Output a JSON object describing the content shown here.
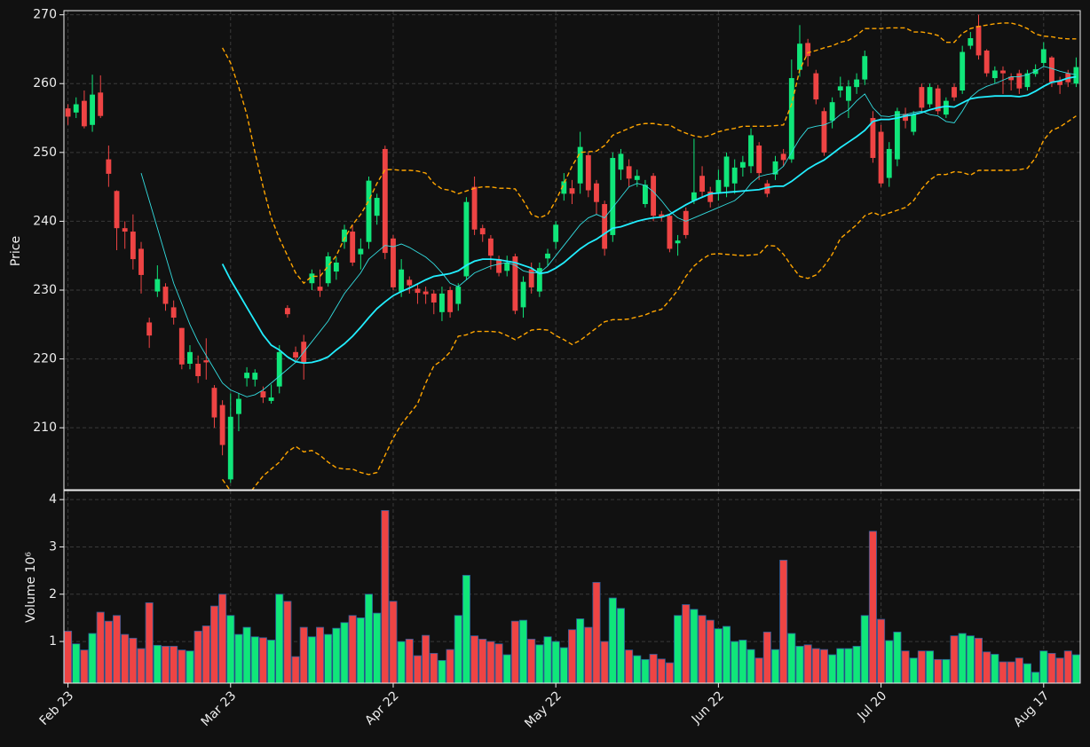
{
  "chart_data": {
    "type": "candlestick",
    "ylabel": "Price",
    "volume_ylabel": "Volume  10⁶",
    "up_color": "#10e67a",
    "down_color": "#ee4444",
    "volume_edge": "#2a5d9a",
    "grid": true,
    "ylim": [
      201,
      270.6
    ],
    "yticks": [
      210,
      220,
      230,
      240,
      250,
      260,
      270
    ],
    "volume_ylim": [
      0.12,
      4.19
    ],
    "volume_yticks": [
      1,
      2,
      3,
      4
    ],
    "categories": [
      "Feb 23",
      null,
      null,
      null,
      null,
      null,
      null,
      null,
      null,
      null,
      null,
      null,
      null,
      null,
      null,
      null,
      null,
      null,
      null,
      null,
      "Mar 23",
      null,
      null,
      null,
      null,
      null,
      null,
      null,
      null,
      null,
      null,
      null,
      null,
      null,
      null,
      null,
      null,
      null,
      null,
      null,
      "Apr 22",
      null,
      null,
      null,
      null,
      null,
      null,
      null,
      null,
      null,
      null,
      null,
      null,
      null,
      null,
      null,
      null,
      null,
      null,
      null,
      "May 22",
      null,
      null,
      null,
      null,
      null,
      null,
      null,
      null,
      null,
      null,
      null,
      null,
      null,
      null,
      null,
      null,
      null,
      null,
      null,
      "Jun 22",
      null,
      null,
      null,
      null,
      null,
      null,
      null,
      null,
      null,
      null,
      null,
      null,
      null,
      null,
      null,
      null,
      null,
      null,
      null,
      "Jul 20",
      null,
      null,
      null,
      null,
      null,
      null,
      null,
      null,
      null,
      null,
      null,
      null,
      null,
      null,
      null,
      null,
      null,
      null,
      null,
      "Aug 17",
      null,
      null,
      null,
      null
    ],
    "open": [
      256.4,
      255.8,
      257.5,
      254,
      258.7,
      249,
      244.4,
      239,
      238.5,
      236,
      225.3,
      229.8,
      230.5,
      227.5,
      224.5,
      219.3,
      219.3,
      219.8,
      215.8,
      213.3,
      202.5,
      212,
      217.2,
      217,
      215.3,
      213.9,
      216,
      227.4,
      221,
      222.5,
      231,
      230.5,
      231,
      232.7,
      237,
      238.5,
      235.2,
      237,
      240.8,
      250.5,
      237.5,
      229.8,
      231.5,
      230.2,
      229.8,
      229.5,
      226.8,
      230,
      228,
      232,
      245,
      239,
      237.5,
      234.5,
      232.8,
      234.9,
      227.5,
      233,
      229.8,
      234.6,
      237,
      244,
      244.8,
      245.5,
      249.6,
      245.5,
      242.5,
      238,
      247.5,
      248,
      246,
      242.5,
      246.6,
      241,
      240.8,
      236.8,
      241.5,
      243,
      246.6,
      244.3,
      244.2,
      245,
      245.5,
      247.8,
      248,
      251,
      245.5,
      246.8,
      249.8,
      249,
      262,
      265.9,
      261.5,
      256,
      254.6,
      259,
      257.5,
      259.5,
      260.6,
      255,
      253,
      246.3,
      249,
      255.6,
      253,
      259.5,
      257,
      259.3,
      255.5,
      259.5,
      259,
      265.5,
      268.4,
      264.8,
      260.8,
      261.9,
      261,
      261.5,
      259.5,
      261.4,
      263,
      263.8,
      260.4,
      261.5,
      260
    ],
    "high": [
      257,
      258,
      259,
      261.3,
      261.2,
      251,
      244.5,
      240,
      241,
      237,
      226,
      233.6,
      231,
      228.5,
      224.5,
      222,
      220.5,
      223,
      216.2,
      214,
      215,
      215,
      218.8,
      218.5,
      216,
      216.3,
      222,
      227.8,
      221.8,
      223.5,
      233,
      233,
      235.5,
      234.8,
      239.5,
      239.5,
      237.5,
      246.5,
      244,
      251,
      238,
      234.5,
      232,
      231,
      230.5,
      230,
      230.5,
      230.5,
      231,
      243.5,
      246.5,
      239.5,
      238,
      235,
      235,
      235.3,
      232,
      234,
      234,
      236,
      240,
      247,
      246,
      253,
      250,
      246,
      243,
      250,
      250.5,
      249,
      247.5,
      246,
      247,
      241.5,
      241,
      238,
      242,
      252,
      248,
      245,
      247.5,
      250,
      249,
      249.5,
      253.5,
      251.5,
      246,
      249.5,
      250.5,
      263.5,
      268.5,
      266.5,
      262,
      256.5,
      258,
      261,
      260.5,
      261.5,
      264.8,
      256,
      254,
      251.5,
      256.5,
      256.5,
      256,
      260,
      260,
      259.8,
      258,
      260,
      265.5,
      267.5,
      270,
      265,
      262.5,
      262.5,
      261.5,
      262,
      262,
      262.8,
      266,
      264,
      261,
      262,
      263.8
    ],
    "low": [
      254,
      255,
      253.5,
      253,
      255,
      245,
      235.8,
      236,
      233,
      229.5,
      221.6,
      229,
      227,
      225,
      218.5,
      218.5,
      216.5,
      217,
      210,
      206,
      202,
      209.5,
      216,
      216,
      213.6,
      213.5,
      215,
      226,
      219.6,
      217,
      230,
      229,
      230.5,
      231.5,
      236,
      233.5,
      233,
      236,
      239.5,
      234.5,
      230,
      229,
      229.5,
      228,
      228,
      226.5,
      225.5,
      226,
      227,
      231.5,
      238,
      237,
      233,
      232,
      232,
      226.5,
      226,
      229.5,
      229,
      233.5,
      236,
      243,
      242.5,
      244,
      243.5,
      241,
      235,
      237,
      246,
      245,
      245,
      242,
      240,
      240,
      235.5,
      235,
      237.5,
      242.5,
      243.5,
      242,
      243,
      243.5,
      244,
      246.5,
      247,
      246,
      243.5,
      246,
      248,
      248.5,
      261,
      262.5,
      257,
      249.5,
      253.5,
      258,
      255,
      258.5,
      259.8,
      248.5,
      245,
      245,
      248,
      253.5,
      252.5,
      256,
      256.5,
      255.5,
      255,
      257.5,
      258.5,
      265,
      263.5,
      261,
      260,
      258.5,
      259,
      258.5,
      259,
      261,
      262.5,
      259.5,
      258.5,
      259.5,
      259.5
    ],
    "close": [
      255.2,
      257,
      253.8,
      258.4,
      255.3,
      246.9,
      239,
      238.5,
      234.5,
      232.2,
      223.4,
      231.6,
      228,
      226,
      219.2,
      221,
      217.5,
      219.5,
      211.5,
      207.5,
      211.6,
      214.2,
      218,
      218,
      214.4,
      214.4,
      221,
      226.5,
      220.2,
      219.5,
      232.4,
      229.9,
      234.9,
      234,
      238.8,
      234,
      236,
      245.9,
      243.4,
      235.4,
      230.4,
      233,
      230.7,
      229.6,
      229.4,
      228.2,
      229.5,
      226.8,
      230.5,
      242.8,
      238.8,
      238.1,
      235,
      232.5,
      234,
      227,
      231.2,
      230.4,
      233.2,
      235.3,
      239.5,
      245.8,
      244,
      250.8,
      244.5,
      242.8,
      236,
      249.2,
      249.8,
      246.2,
      246.6,
      245.3,
      240.8,
      240.6,
      236,
      237.2,
      238,
      244.2,
      244.3,
      242.8,
      246,
      249.4,
      247.8,
      248.6,
      252.5,
      247,
      244,
      248.7,
      248.9,
      260.8,
      265.8,
      264,
      257.7,
      250,
      257.3,
      259.6,
      259.6,
      260.6,
      264,
      249.2,
      245.5,
      250.5,
      256,
      254.6,
      255.5,
      256.5,
      259.5,
      256,
      257.5,
      258,
      264.6,
      266.6,
      264.1,
      261.5,
      261.9,
      261.5,
      260.5,
      259.3,
      261.5,
      262.1,
      265,
      260.2,
      259.8,
      260.2,
      262.4
    ],
    "volume": [
      1.22,
      0.95,
      0.82,
      1.17,
      1.62,
      1.43,
      1.55,
      1.15,
      1.07,
      0.85,
      1.82,
      0.92,
      0.9,
      0.9,
      0.82,
      0.8,
      1.22,
      1.33,
      1.75,
      2.0,
      1.55,
      1.15,
      1.3,
      1.1,
      1.08,
      1.03,
      2.0,
      1.85,
      0.68,
      1.3,
      1.1,
      1.3,
      1.15,
      1.28,
      1.4,
      1.55,
      1.5,
      2.0,
      1.6,
      3.77,
      1.85,
      1.0,
      1.05,
      0.7,
      1.13,
      0.75,
      0.6,
      0.83,
      1.55,
      2.4,
      1.12,
      1.05,
      1.0,
      0.95,
      0.72,
      1.43,
      1.45,
      1.05,
      0.93,
      1.1,
      1.0,
      0.87,
      1.25,
      1.48,
      1.3,
      2.25,
      1.0,
      1.92,
      1.7,
      0.82,
      0.7,
      0.62,
      0.73,
      0.63,
      0.55,
      1.55,
      1.78,
      1.68,
      1.55,
      1.45,
      1.27,
      1.32,
      1.0,
      1.03,
      0.83,
      0.65,
      1.2,
      0.83,
      2.72,
      1.17,
      0.9,
      0.93,
      0.85,
      0.83,
      0.72,
      0.85,
      0.85,
      0.9,
      1.55,
      3.33,
      1.47,
      1.02,
      1.2,
      0.8,
      0.65,
      0.8,
      0.8,
      0.62,
      0.62,
      1.12,
      1.17,
      1.12,
      1.07,
      0.78,
      0.73,
      0.57,
      0.57,
      0.65,
      0.53,
      0.35,
      0.8,
      0.75,
      0.65,
      0.8,
      0.72
    ],
    "lines": [
      {
        "color": "#33dde0",
        "dashed": false,
        "values": [
          null,
          null,
          null,
          null,
          null,
          null,
          null,
          null,
          null,
          247,
          243,
          239,
          235,
          231,
          228,
          225,
          222.5,
          220.5,
          218.5,
          216.5,
          215.5,
          215,
          214.5,
          214.8,
          215.5,
          216.5,
          217.5,
          218.5,
          219.5,
          221,
          222.5,
          224,
          225.5,
          227.5,
          229.5,
          231,
          232.5,
          234.5,
          235.5,
          236.5,
          236.3,
          236.7,
          236.2,
          235.5,
          234.8,
          233.8,
          232.5,
          231,
          230.5,
          231.5,
          232.5,
          233,
          233.5,
          233.8,
          234,
          233.6,
          232.8,
          232.5,
          232.5,
          233.5,
          235,
          236.5,
          238,
          239.5,
          240.5,
          241,
          240.5,
          242,
          243.5,
          245,
          245.5,
          245.2,
          244.3,
          243,
          241.5,
          240.5,
          240,
          240.5,
          241,
          241.5,
          242,
          242.5,
          243,
          244,
          245.5,
          246.5,
          246.8,
          247,
          248,
          250,
          252,
          253.5,
          253.8,
          254,
          254.5,
          255.5,
          256.2,
          257.5,
          258.5,
          256.5,
          255.3,
          255.2,
          255.5,
          255.5,
          255.8,
          256,
          255.5,
          255.3,
          254.5,
          254.3,
          256,
          258,
          259,
          259.6,
          260,
          260.5,
          261,
          261,
          261.3,
          261.8,
          262.5,
          262.2,
          261.8,
          261.5,
          261.3
        ]
      },
      {
        "color": "#22eeff",
        "dashed": false,
        "values": [
          null,
          null,
          null,
          null,
          null,
          null,
          null,
          null,
          null,
          null,
          null,
          null,
          null,
          null,
          null,
          null,
          null,
          null,
          null,
          233.8,
          231.5,
          229.5,
          227.5,
          225.5,
          223.5,
          222,
          221.3,
          220.3,
          219.6,
          219.4,
          219.5,
          219.8,
          220.3,
          221.3,
          222.2,
          223.3,
          224.6,
          226,
          227.3,
          228.3,
          229.2,
          229.8,
          230.3,
          230.9,
          231.5,
          232,
          232.2,
          232.4,
          232.8,
          233.6,
          234.2,
          234.5,
          234.5,
          234.4,
          234.2,
          234,
          233.6,
          233.2,
          232.4,
          232.6,
          233.2,
          234,
          235,
          236,
          236.8,
          237.4,
          238.2,
          239,
          239.2,
          239.6,
          240,
          240.3,
          240.5,
          240.6,
          241,
          241.7,
          242.4,
          243,
          243.5,
          244,
          244.1,
          244.2,
          244.3,
          244.4,
          244.5,
          244.6,
          244.9,
          245.1,
          245.1,
          245.8,
          246.7,
          247.6,
          248.3,
          248.9,
          249.8,
          250.7,
          251.5,
          252.3,
          253.2,
          254.5,
          254.8,
          254.8,
          255,
          255.3,
          255.5,
          255.8,
          256.2,
          256.5,
          256.7,
          256.6,
          257.2,
          257.8,
          258,
          258.1,
          258.2,
          258.2,
          258.2,
          258.1,
          258.3,
          258.9,
          259.6,
          260.2,
          260.4,
          260.8,
          261
        ]
      },
      {
        "color": "#ffa500",
        "dashed": true,
        "values": [
          null,
          null,
          null,
          null,
          null,
          null,
          null,
          null,
          null,
          null,
          null,
          null,
          null,
          null,
          null,
          null,
          null,
          null,
          null,
          265.2,
          263,
          259.5,
          255.5,
          250,
          245,
          240.5,
          237.5,
          235,
          232.5,
          231,
          232,
          232,
          233.5,
          235,
          237.5,
          239.5,
          241,
          243,
          245.5,
          247.5,
          247.5,
          247.4,
          247.4,
          247.3,
          247,
          245.5,
          244.7,
          244.5,
          244,
          244.4,
          244.8,
          245,
          245,
          244.8,
          244.8,
          244.7,
          243,
          241,
          240.5,
          241,
          243,
          245.5,
          248,
          250,
          250.1,
          250.2,
          251,
          252.5,
          253,
          253.5,
          254,
          254.2,
          254.2,
          254,
          254,
          253.3,
          252.8,
          252.4,
          252.2,
          252.5,
          253,
          253.3,
          253.5,
          253.8,
          253.8,
          253.8,
          253.8,
          253.9,
          254,
          257,
          262,
          264.5,
          264.8,
          265.2,
          265.5,
          266,
          266.3,
          267,
          268,
          268,
          268,
          268.1,
          268.1,
          268.1,
          267.5,
          267.5,
          267.3,
          267,
          266,
          266,
          267.3,
          268,
          268.3,
          268.5,
          268.7,
          268.8,
          268.8,
          268.5,
          268,
          267.2,
          266.9,
          266.8,
          266.6,
          266.5,
          266.5
        ]
      },
      {
        "color": "#ffa500",
        "dashed": true,
        "values": [
          null,
          null,
          null,
          null,
          null,
          null,
          null,
          null,
          null,
          null,
          null,
          null,
          null,
          null,
          null,
          null,
          null,
          null,
          null,
          202.5,
          200.8,
          199.5,
          200,
          201.5,
          203,
          204,
          205,
          206.5,
          207.3,
          206.5,
          206.7,
          206,
          205,
          204.2,
          204,
          204,
          203.5,
          203.2,
          203.5,
          206,
          208.5,
          210.5,
          212,
          213.5,
          216.5,
          219,
          219.8,
          221,
          223.3,
          223.5,
          224,
          224,
          224,
          223.9,
          223.4,
          222.8,
          223.5,
          224.2,
          224.3,
          224.2,
          223.4,
          222.8,
          222.1,
          222.7,
          223.6,
          224.5,
          225.4,
          225.7,
          225.7,
          225.8,
          226.1,
          226.4,
          226.9,
          227.2,
          228.5,
          230,
          232,
          233.5,
          234.5,
          235.2,
          235.3,
          235.2,
          235.1,
          235,
          235.1,
          235.2,
          236.5,
          236.4,
          235.2,
          233.5,
          232,
          231.7,
          232.2,
          233.5,
          235.2,
          237.5,
          238.5,
          239.5,
          240.8,
          241.3,
          240.8,
          241.2,
          241.6,
          242,
          243,
          244.7,
          246,
          246.8,
          246.8,
          247.2,
          247.1,
          246.7,
          247.4,
          247.4,
          247.4,
          247.4,
          247.4,
          247.5,
          247.7,
          249.2,
          251.8,
          253.2,
          253.7,
          254.5,
          255.3
        ]
      }
    ]
  }
}
